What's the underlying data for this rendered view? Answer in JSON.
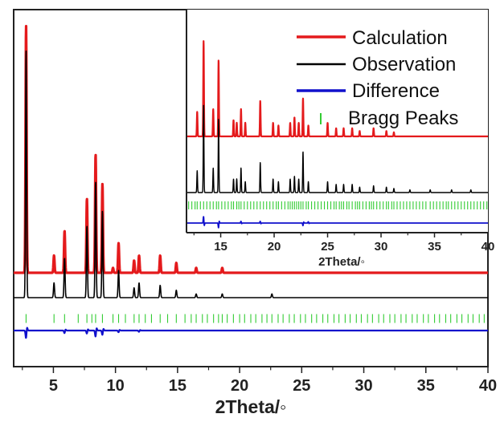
{
  "chart_data": [
    {
      "panel": "main",
      "type": "line",
      "xlabel": "2Theta/◦",
      "xlim": [
        1.8,
        40
      ],
      "xticks": [
        5,
        10,
        15,
        20,
        25,
        30,
        35,
        40
      ],
      "grid": false,
      "legend": "none",
      "series": [
        {
          "name": "Calculation",
          "color": "#e41a1c",
          "profile": "peaks",
          "peaks": [
            {
              "x": 2.8,
              "h": 1.0
            },
            {
              "x": 5.05,
              "h": 0.07
            },
            {
              "x": 5.9,
              "h": 0.17
            },
            {
              "x": 7.7,
              "h": 0.3
            },
            {
              "x": 8.4,
              "h": 0.48
            },
            {
              "x": 8.95,
              "h": 0.36
            },
            {
              "x": 9.8,
              "h": 0.02
            },
            {
              "x": 10.25,
              "h": 0.12
            },
            {
              "x": 11.5,
              "h": 0.05
            },
            {
              "x": 11.9,
              "h": 0.07
            },
            {
              "x": 13.6,
              "h": 0.07
            },
            {
              "x": 14.9,
              "h": 0.04
            },
            {
              "x": 16.5,
              "h": 0.02
            },
            {
              "x": 18.6,
              "h": 0.02
            }
          ]
        },
        {
          "name": "Observation",
          "color": "#000000",
          "profile": "peaks",
          "peaks": [
            {
              "x": 2.8,
              "h": 1.0
            },
            {
              "x": 5.05,
              "h": 0.06
            },
            {
              "x": 5.9,
              "h": 0.16
            },
            {
              "x": 7.7,
              "h": 0.29
            },
            {
              "x": 8.4,
              "h": 0.47
            },
            {
              "x": 8.95,
              "h": 0.35
            },
            {
              "x": 10.25,
              "h": 0.11
            },
            {
              "x": 11.5,
              "h": 0.04
            },
            {
              "x": 11.9,
              "h": 0.06
            },
            {
              "x": 13.6,
              "h": 0.05
            },
            {
              "x": 14.9,
              "h": 0.03
            },
            {
              "x": 16.5,
              "h": 0.015
            },
            {
              "x": 18.6,
              "h": 0.015
            },
            {
              "x": 22.6,
              "h": 0.015
            }
          ]
        },
        {
          "name": "Bragg Peaks",
          "color": "#33cc33",
          "profile": "ticks",
          "positions": [
            2.8,
            5.05,
            5.9,
            7.0,
            7.7,
            8.1,
            8.4,
            8.95,
            9.8,
            10.25,
            10.8,
            11.5,
            11.9,
            12.4,
            12.9,
            13.6,
            14.2,
            14.9,
            15.6,
            16.1,
            16.5,
            17.0,
            17.4,
            17.9,
            18.3,
            18.6,
            19.0,
            19.5,
            20.0,
            20.4,
            20.9,
            21.3,
            21.8,
            22.2,
            22.6,
            23.1,
            23.5,
            24.0,
            24.4,
            24.9,
            25.3,
            25.8,
            26.2,
            26.7,
            27.1,
            27.6,
            28.0,
            28.5,
            28.9,
            29.4,
            29.8,
            30.3,
            30.7,
            31.2,
            31.6,
            32.1,
            32.5,
            33.0,
            33.4,
            33.9,
            34.3,
            34.8,
            35.2,
            35.7,
            36.1,
            36.6,
            37.0,
            37.5,
            37.9,
            38.4,
            38.8,
            39.3,
            39.7
          ]
        },
        {
          "name": "Difference",
          "color": "#1010cc",
          "profile": "diff",
          "peaks": [
            {
              "x": 2.8,
              "h": -0.035
            },
            {
              "x": 5.9,
              "h": -0.012
            },
            {
              "x": 7.7,
              "h": -0.014
            },
            {
              "x": 8.4,
              "h": -0.028
            },
            {
              "x": 8.95,
              "h": -0.02
            },
            {
              "x": 10.25,
              "h": -0.008
            },
            {
              "x": 11.9,
              "h": -0.006
            }
          ]
        }
      ]
    },
    {
      "panel": "inset",
      "type": "line",
      "xlabel": "2Theta/◦",
      "xlim": [
        11.8,
        40
      ],
      "xticks": [
        15,
        20,
        25,
        30,
        35,
        40
      ],
      "grid": false,
      "legend": "top-right",
      "series": [
        {
          "name": "Calculation",
          "color": "#e41a1c",
          "profile": "peaks",
          "peaks": [
            {
              "x": 12.8,
              "h": 0.09
            },
            {
              "x": 13.4,
              "h": 0.35
            },
            {
              "x": 14.3,
              "h": 0.1
            },
            {
              "x": 14.8,
              "h": 0.28
            },
            {
              "x": 16.2,
              "h": 0.06
            },
            {
              "x": 16.5,
              "h": 0.05
            },
            {
              "x": 16.9,
              "h": 0.1
            },
            {
              "x": 17.3,
              "h": 0.05
            },
            {
              "x": 18.7,
              "h": 0.13
            },
            {
              "x": 19.9,
              "h": 0.05
            },
            {
              "x": 20.4,
              "h": 0.04
            },
            {
              "x": 21.5,
              "h": 0.05
            },
            {
              "x": 21.9,
              "h": 0.07
            },
            {
              "x": 22.3,
              "h": 0.05
            },
            {
              "x": 22.7,
              "h": 0.14
            },
            {
              "x": 23.2,
              "h": 0.04
            },
            {
              "x": 25.0,
              "h": 0.05
            },
            {
              "x": 25.8,
              "h": 0.03
            },
            {
              "x": 26.5,
              "h": 0.03
            },
            {
              "x": 27.3,
              "h": 0.03
            },
            {
              "x": 28.0,
              "h": 0.02
            },
            {
              "x": 29.3,
              "h": 0.03
            },
            {
              "x": 30.5,
              "h": 0.02
            },
            {
              "x": 31.2,
              "h": 0.015
            }
          ]
        },
        {
          "name": "Observation",
          "color": "#000000",
          "profile": "peaks",
          "peaks": [
            {
              "x": 12.8,
              "h": 0.08
            },
            {
              "x": 13.4,
              "h": 0.32
            },
            {
              "x": 14.3,
              "h": 0.09
            },
            {
              "x": 14.8,
              "h": 0.27
            },
            {
              "x": 16.2,
              "h": 0.05
            },
            {
              "x": 16.5,
              "h": 0.05
            },
            {
              "x": 16.9,
              "h": 0.09
            },
            {
              "x": 17.3,
              "h": 0.04
            },
            {
              "x": 18.7,
              "h": 0.11
            },
            {
              "x": 19.9,
              "h": 0.05
            },
            {
              "x": 20.4,
              "h": 0.04
            },
            {
              "x": 21.5,
              "h": 0.05
            },
            {
              "x": 21.9,
              "h": 0.06
            },
            {
              "x": 22.3,
              "h": 0.05
            },
            {
              "x": 22.7,
              "h": 0.15
            },
            {
              "x": 23.2,
              "h": 0.04
            },
            {
              "x": 25.0,
              "h": 0.04
            },
            {
              "x": 25.8,
              "h": 0.03
            },
            {
              "x": 26.5,
              "h": 0.03
            },
            {
              "x": 27.3,
              "h": 0.03
            },
            {
              "x": 28.0,
              "h": 0.02
            },
            {
              "x": 29.3,
              "h": 0.025
            },
            {
              "x": 30.5,
              "h": 0.02
            },
            {
              "x": 31.2,
              "h": 0.015
            },
            {
              "x": 32.7,
              "h": 0.01
            },
            {
              "x": 34.6,
              "h": 0.01
            },
            {
              "x": 36.6,
              "h": 0.01
            },
            {
              "x": 38.4,
              "h": 0.01
            }
          ]
        },
        {
          "name": "Bragg Peaks",
          "color": "#33cc33",
          "profile": "ticks",
          "positions": [
            12.0,
            12.3,
            12.6,
            12.8,
            13.1,
            13.4,
            13.7,
            14.0,
            14.3,
            14.6,
            14.8,
            15.1,
            15.4,
            15.7,
            16.0,
            16.2,
            16.5,
            16.7,
            16.9,
            17.2,
            17.5,
            17.8,
            18.1,
            18.4,
            18.7,
            19.0,
            19.3,
            19.6,
            19.9,
            20.2,
            20.4,
            20.7,
            21.0,
            21.3,
            21.5,
            21.7,
            21.9,
            22.1,
            22.3,
            22.5,
            22.7,
            23.0,
            23.2,
            23.5,
            23.8,
            24.1,
            24.4,
            24.7,
            25.0,
            25.3,
            25.6,
            25.8,
            26.1,
            26.3,
            26.5,
            26.8,
            27.0,
            27.3,
            27.6,
            27.8,
            28.0,
            28.3,
            28.6,
            28.9,
            29.1,
            29.3,
            29.6,
            29.9,
            30.2,
            30.5,
            30.7,
            31.0,
            31.2,
            31.5,
            31.8,
            32.1,
            32.4,
            32.7,
            33.0,
            33.3,
            33.6,
            33.9,
            34.2,
            34.6,
            34.9,
            35.2,
            35.5,
            35.8,
            36.1,
            36.3,
            36.6,
            36.9,
            37.2,
            37.5,
            37.8,
            38.1,
            38.4,
            38.7,
            39.0,
            39.3,
            39.6,
            39.9
          ]
        },
        {
          "name": "Difference",
          "color": "#1010cc",
          "profile": "diff",
          "peaks": [
            {
              "x": 13.4,
              "h": 0.03
            },
            {
              "x": 14.8,
              "h": -0.022
            },
            {
              "x": 16.9,
              "h": 0.008
            },
            {
              "x": 18.7,
              "h": 0.008
            },
            {
              "x": 22.7,
              "h": -0.012
            },
            {
              "x": 23.2,
              "h": 0.006
            }
          ]
        }
      ]
    }
  ]
}
